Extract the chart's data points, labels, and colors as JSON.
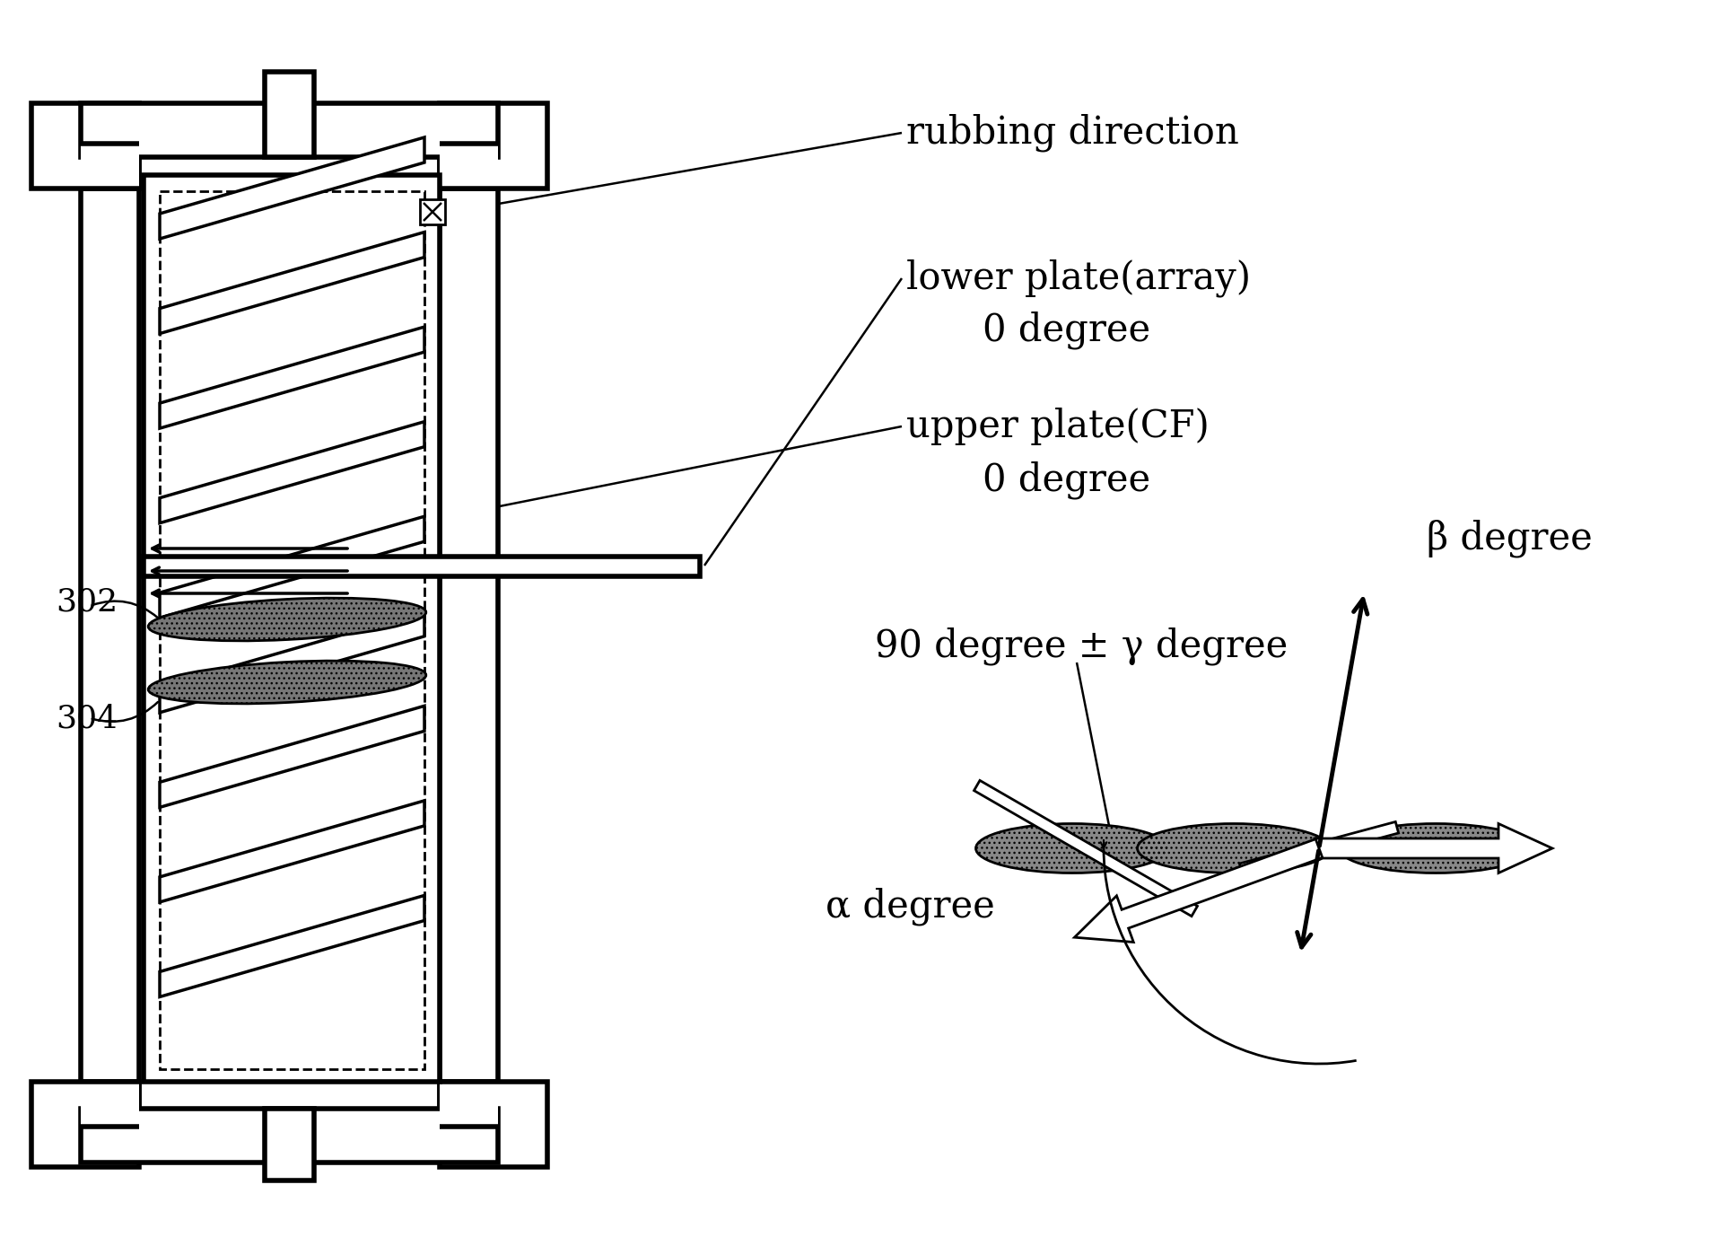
{
  "bg_color": "#ffffff",
  "text_color": "#000000",
  "label_302": "302",
  "label_304": "304",
  "text_rubbing": "rubbing direction",
  "text_lower_1": "lower plate(array)",
  "text_lower_2": "0 degree",
  "text_upper_1": "upper plate(CF)",
  "text_upper_2": "0 degree",
  "text_90deg": "90 degree ± γ degree",
  "text_alpha": "α degree",
  "text_beta": "β degree",
  "figsize": [
    19.18,
    13.88
  ],
  "dpi": 100
}
